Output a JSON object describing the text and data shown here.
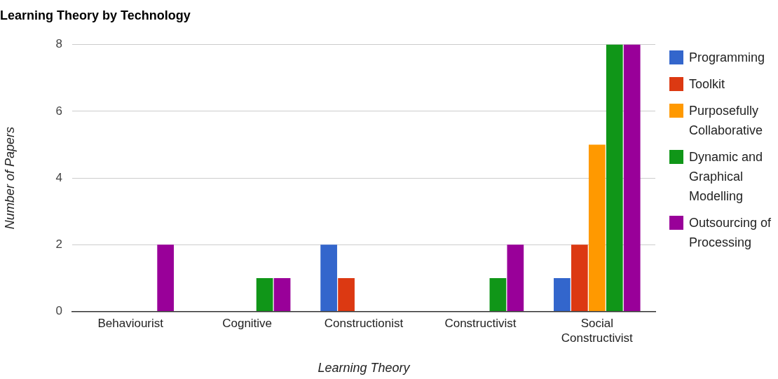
{
  "chart_data": {
    "type": "bar",
    "title": "Learning Theory by Technology",
    "xlabel": "Learning Theory",
    "ylabel": "Number of Papers",
    "categories": [
      "Behaviourist",
      "Cognitive",
      "Constructionist",
      "Constructivist",
      "Social Constructivist"
    ],
    "series": [
      {
        "name": "Programming",
        "color": "#3366cc",
        "values": [
          0,
          0,
          2,
          0,
          1
        ]
      },
      {
        "name": "Toolkit",
        "color": "#dc3912",
        "values": [
          0,
          0,
          1,
          0,
          2
        ]
      },
      {
        "name": "Purposefully Collaborative",
        "color": "#ff9900",
        "values": [
          0,
          0,
          0,
          0,
          5
        ]
      },
      {
        "name": "Dynamic and Graphical Modelling",
        "color": "#109618",
        "values": [
          0,
          1,
          0,
          1,
          8
        ]
      },
      {
        "name": "Outsourcing of Processing",
        "color": "#990099",
        "values": [
          2,
          1,
          0,
          2,
          8
        ]
      }
    ],
    "ylim": [
      0,
      8
    ],
    "yticks": [
      0,
      2,
      4,
      6,
      8
    ],
    "grid": "y",
    "legend": "right"
  }
}
